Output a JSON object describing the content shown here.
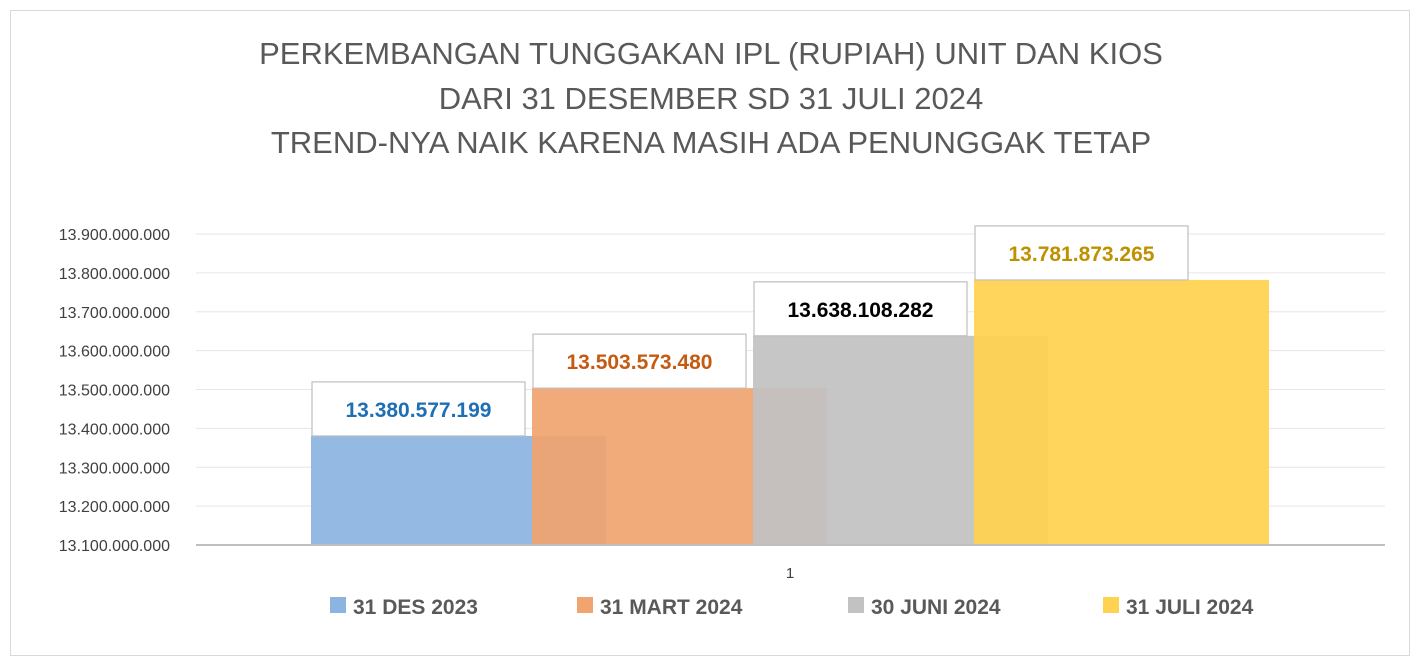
{
  "chart_data": {
    "type": "bar",
    "title": [
      "PERKEMBANGAN TUNGGAKAN IPL (RUPIAH) UNIT DAN KIOS",
      "DARI 31 DESEMBER SD 31 JULI 2024",
      "TREND-NYA NAIK KARENA MASIH ADA PENUNGGAK TETAP"
    ],
    "categories": [
      "1"
    ],
    "ylim": [
      13100000000,
      13900000000
    ],
    "yticks": [
      "13.100.000.000",
      "13.200.000.000",
      "13.300.000.000",
      "13.400.000.000",
      "13.500.000.000",
      "13.600.000.000",
      "13.700.000.000",
      "13.800.000.000",
      "13.900.000.000"
    ],
    "grid": true,
    "legend_position": "bottom",
    "series": [
      {
        "name": "31 DES 2023",
        "values": [
          13380577199
        ],
        "label": "13.380.577.199",
        "color": "#8cb4e0",
        "label_color": "#1f6fb5"
      },
      {
        "name": "31 MART 2024",
        "values": [
          13503573480
        ],
        "label": "13.503.573.480",
        "color": "#f0a470",
        "label_color": "#c55a11"
      },
      {
        "name": "30 JUNI 2024",
        "values": [
          13638108282
        ],
        "label": "13.638.108.282",
        "color": "#c2c2c2",
        "label_color": "#000000"
      },
      {
        "name": "31 JULI 2024",
        "values": [
          13781873265
        ],
        "label": "13.781.873.265",
        "color": "#ffd34f",
        "label_color": "#bf9000"
      }
    ]
  }
}
